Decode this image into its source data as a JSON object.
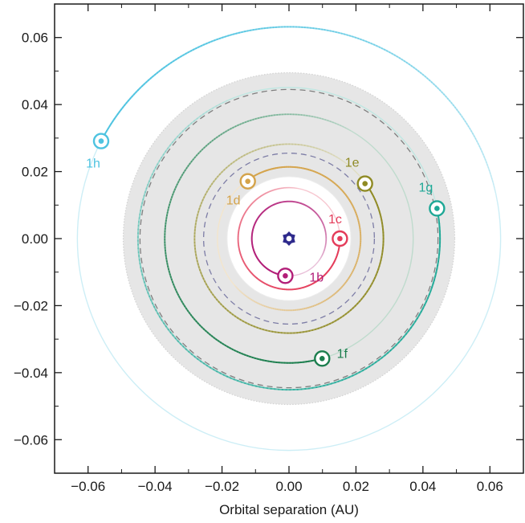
{
  "chart_data": {
    "type": "scatter",
    "title": "",
    "xlabel": "Orbital separation (AU)",
    "ylabel": "",
    "xlim": [
      -0.07,
      0.07
    ],
    "ylim": [
      -0.07,
      0.07
    ],
    "xticks": [
      -0.06,
      -0.04,
      -0.02,
      0.0,
      0.02,
      0.04,
      0.06
    ],
    "yticks": [
      -0.06,
      -0.04,
      -0.02,
      0.0,
      0.02,
      0.04,
      0.06
    ],
    "xtick_labels": [
      "−0.06",
      "−0.04",
      "−0.02",
      "0.00",
      "0.02",
      "0.04",
      "0.06"
    ],
    "ytick_labels": [
      "−0.06",
      "−0.04",
      "−0.02",
      "0.00",
      "0.02",
      "0.04",
      "0.06"
    ],
    "grid": false,
    "star": {
      "x": 0.0,
      "y": 0.0,
      "color": "#2e2a8c"
    },
    "habitable_zone": {
      "inner_radius": 0.0185,
      "outer_radius": 0.0495,
      "color": "#e6e6e6"
    },
    "dashed_circles": [
      {
        "radius": 0.0255,
        "color": "#7d7da6"
      },
      {
        "radius": 0.0445,
        "color": "#7f7f7f"
      }
    ],
    "series": [
      {
        "name": "1b",
        "x": -0.0011,
        "y": -0.0111,
        "a": 0.0111,
        "arc_degrees": 300,
        "color": "#b21e78"
      },
      {
        "name": "1c",
        "x": 0.0152,
        "y": 0.0,
        "a": 0.0152,
        "arc_degrees": 280,
        "color": "#e43c5a"
      },
      {
        "name": "1d",
        "x": -0.0123,
        "y": 0.0171,
        "a": 0.0214,
        "arc_degrees": 265,
        "color": "#d4a34a"
      },
      {
        "name": "1e",
        "x": 0.0227,
        "y": 0.0164,
        "a": 0.0282,
        "arc_degrees": 340,
        "color": "#8f8a24"
      },
      {
        "name": "1f",
        "x": 0.0099,
        "y": -0.0358,
        "a": 0.0371,
        "arc_degrees": 225,
        "color": "#1c7e4e"
      },
      {
        "name": "1g",
        "x": 0.0442,
        "y": 0.009,
        "a": 0.0451,
        "arc_degrees": 260,
        "color": "#1ea896"
      },
      {
        "name": "1h",
        "x": -0.0561,
        "y": 0.0291,
        "a": 0.0632,
        "arc_degrees": 140,
        "color": "#4ec3e0"
      }
    ]
  }
}
